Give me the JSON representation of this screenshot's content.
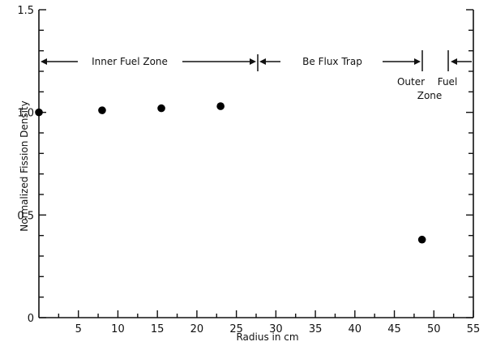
{
  "chart_data": {
    "type": "scatter",
    "xlabel": "Radius in cm",
    "ylabel": "Normalized Fission Density",
    "xlim": [
      0,
      55
    ],
    "ylim": [
      0,
      1.5
    ],
    "x_ticks": [
      "5",
      "10",
      "15",
      "20",
      "25",
      "30",
      "35",
      "40",
      "45",
      "50",
      "55"
    ],
    "y_ticks": [
      "0",
      "0.5",
      "1.0",
      "1.5"
    ],
    "grid": false,
    "series": [
      {
        "x": [
          0,
          8,
          15.5,
          23,
          48.5
        ],
        "y": [
          1.0,
          1.01,
          1.02,
          1.03,
          0.38
        ]
      }
    ],
    "annotations": {
      "inner_fuel_zone": "Inner Fuel Zone",
      "be_flux_trap": "Be Flux Trap",
      "outer_fuel_zone_line1": "Outer",
      "outer_fuel_zone_fuel": "Fuel",
      "outer_fuel_zone_line2": "Zone"
    }
  }
}
